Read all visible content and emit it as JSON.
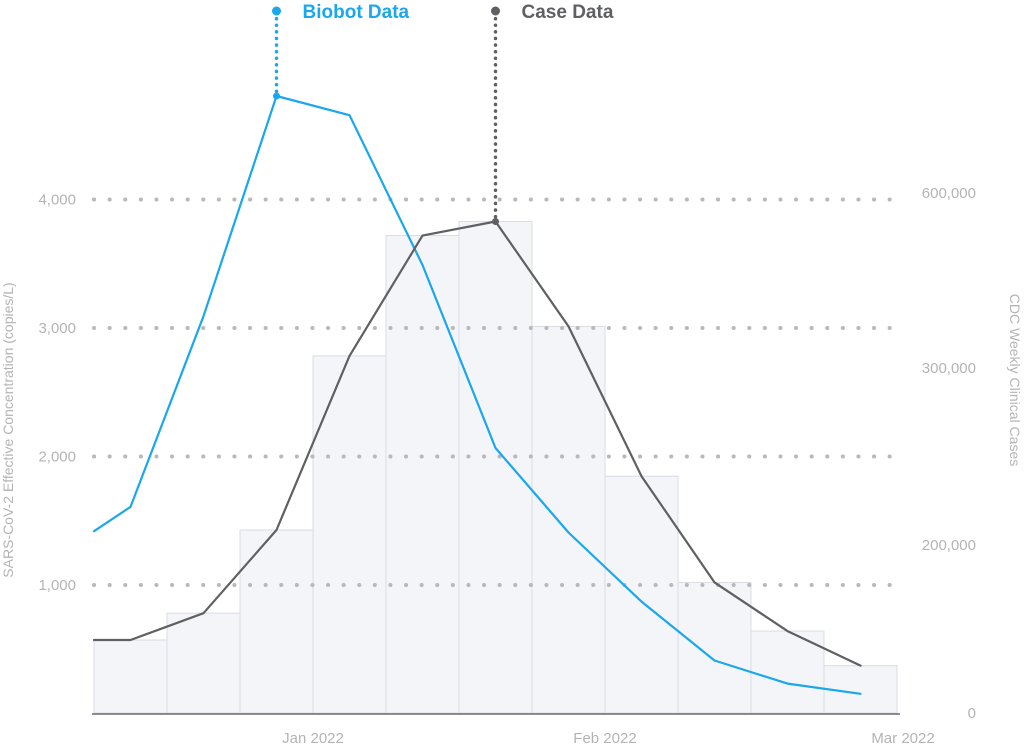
{
  "chart_data": {
    "type": "bar+line",
    "title": "",
    "y_left": {
      "label": "SARS-CoV-2 Effective Concentration (copies/L)",
      "ticks": [
        1000,
        2000,
        3000,
        4000
      ],
      "tick_labels": [
        "1,000",
        "2,000",
        "3,000",
        "4,000"
      ],
      "range": [
        0,
        4000
      ]
    },
    "y_right": {
      "label": "CDC Weekly Clinical Cases",
      "ticks": [
        0,
        200000,
        300000,
        600000
      ],
      "tick_labels": [
        "0",
        "200,000",
        "300,000",
        "600,000"
      ]
    },
    "x_ticks": [
      {
        "label": "Jan 2022",
        "week": 3
      },
      {
        "label": "Feb 2022",
        "week": 7
      },
      {
        "label": "Mar 2022",
        "week": 11
      }
    ],
    "bars": {
      "name": "CDC Weekly Clinical Cases (left-axis units)",
      "values": [
        570,
        780,
        1430,
        2790,
        3730,
        3840,
        3020,
        1850,
        1020,
        640,
        370
      ]
    },
    "series": [
      {
        "name": "Biobot Data",
        "color": "#1aa7ec",
        "x": [
          0,
          0.5,
          1.5,
          2.5,
          3.5,
          4.5,
          5.5,
          6.5,
          7.5,
          8.5,
          9.5,
          10.5
        ],
        "values": [
          1420,
          1610,
          3100,
          4820,
          4670,
          3500,
          2070,
          1410,
          870,
          410,
          230,
          150
        ]
      },
      {
        "name": "Case Data",
        "color": "#5f6063",
        "x": [
          0,
          0.5,
          1.5,
          2.5,
          3.5,
          4.5,
          5.5,
          6.5,
          7.5,
          8.5,
          9.5,
          10.5
        ],
        "values": [
          570,
          570,
          780,
          1430,
          2790,
          3730,
          3840,
          3020,
          1850,
          1020,
          640,
          370
        ]
      }
    ],
    "legend": [
      {
        "label": "Biobot Data",
        "color": "#1aa7ec",
        "peak_index": 3
      },
      {
        "label": "Case Data",
        "color": "#5f6063",
        "peak_index": 6
      }
    ],
    "grid": "dotted horizontal",
    "colors": {
      "bar_fill": "#f3f5f8",
      "bar_stroke": "#d8dde3",
      "grid": "#b9b9b9",
      "axis": "#6b6b6b",
      "tick_text": "#b4b4b4"
    }
  }
}
